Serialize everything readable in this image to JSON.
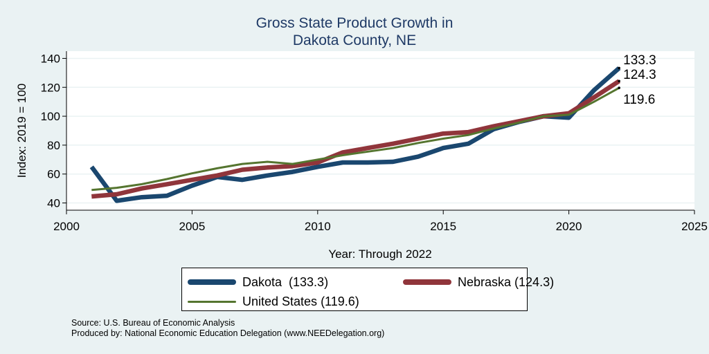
{
  "chart_data": {
    "type": "line",
    "title": [
      "Gross State Product Growth in",
      "Dakota County, NE"
    ],
    "xlabel": "Year: Through 2022",
    "ylabel": "Index: 2019 = 100",
    "xlim": [
      2000,
      2025
    ],
    "ylim": [
      35,
      145
    ],
    "xticks": [
      2000,
      2005,
      2010,
      2015,
      2020,
      2025
    ],
    "yticks": [
      40,
      60,
      80,
      100,
      120,
      140
    ],
    "grid": true,
    "legend_position": "bottom",
    "x": [
      2001,
      2002,
      2003,
      2004,
      2005,
      2006,
      2007,
      2008,
      2009,
      2010,
      2011,
      2012,
      2013,
      2014,
      2015,
      2016,
      2017,
      2018,
      2019,
      2020,
      2021,
      2022
    ],
    "series": [
      {
        "name": "Dakota",
        "legend_label": "Dakota  (133.3)",
        "end_label": "133.3",
        "color": "#1a476f",
        "values": [
          65,
          41.5,
          44,
          45,
          52,
          58,
          56,
          59,
          61.5,
          65,
          68,
          68,
          68.5,
          72,
          78,
          81,
          91,
          96,
          100,
          99,
          118,
          133.3
        ]
      },
      {
        "name": "Nebraska",
        "legend_label": "Nebraska (124.3)",
        "end_label": "124.3",
        "color": "#90353b",
        "values": [
          44.5,
          46,
          50,
          53,
          56,
          59,
          63,
          64.5,
          65.5,
          68,
          75,
          78,
          81,
          84.5,
          88,
          89,
          93,
          96.5,
          100,
          102,
          113,
          124.3
        ]
      },
      {
        "name": "United States",
        "legend_label": "United States (119.6)",
        "end_label": "119.6",
        "color": "#55752f",
        "values": [
          49,
          50.5,
          53,
          56.5,
          60.5,
          64,
          67,
          68.5,
          67,
          70,
          73,
          75.5,
          78,
          81.5,
          84.5,
          87,
          91.5,
          95.5,
          100,
          101,
          110,
          119.6
        ]
      }
    ]
  },
  "source_note": "Source: U.S. Bureau of Economic Analysis",
  "produced_note": "Produced by: National Economic Education Delegation (www.NEEDelegation.org)"
}
